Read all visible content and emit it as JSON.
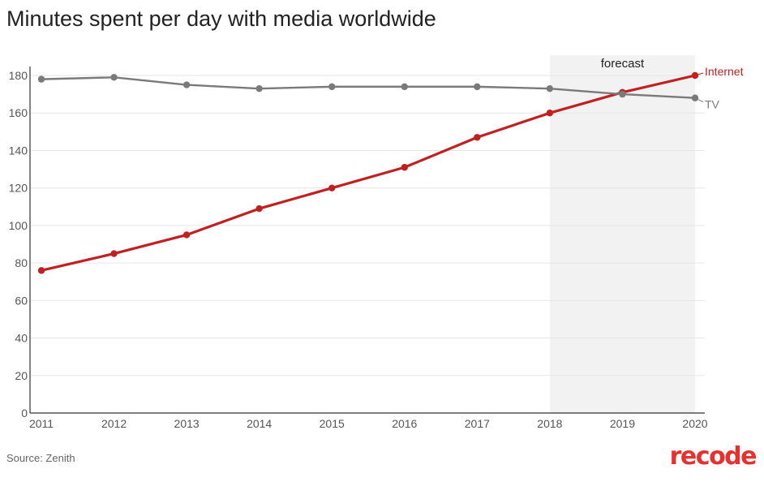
{
  "title": "Minutes spent per day with media worldwide",
  "source": "Source: Zenith",
  "logo": "recode",
  "colors": {
    "internet": "#c0201f",
    "tv": "#7a7a7a",
    "forecast_band": "#f2f2f2",
    "grid": "#e6e6e6",
    "axis": "#333333"
  },
  "chart_data": {
    "type": "line",
    "x": [
      2011,
      2012,
      2013,
      2014,
      2015,
      2016,
      2017,
      2018,
      2019,
      2020
    ],
    "ylim": [
      0,
      185
    ],
    "yticks": [
      0,
      20,
      40,
      60,
      80,
      100,
      120,
      140,
      160,
      180
    ],
    "grid": true,
    "series": [
      {
        "name": "Internet",
        "color": "#c0201f",
        "values": [
          76,
          85,
          95,
          109,
          120,
          131,
          147,
          160,
          171,
          180
        ]
      },
      {
        "name": "TV",
        "color": "#7a7a7a",
        "values": [
          178,
          179,
          175,
          173,
          174,
          174,
          174,
          173,
          170,
          168
        ]
      }
    ],
    "annotations": [
      {
        "label": "forecast",
        "x_start": 2018,
        "x_end": 2020
      }
    ]
  }
}
